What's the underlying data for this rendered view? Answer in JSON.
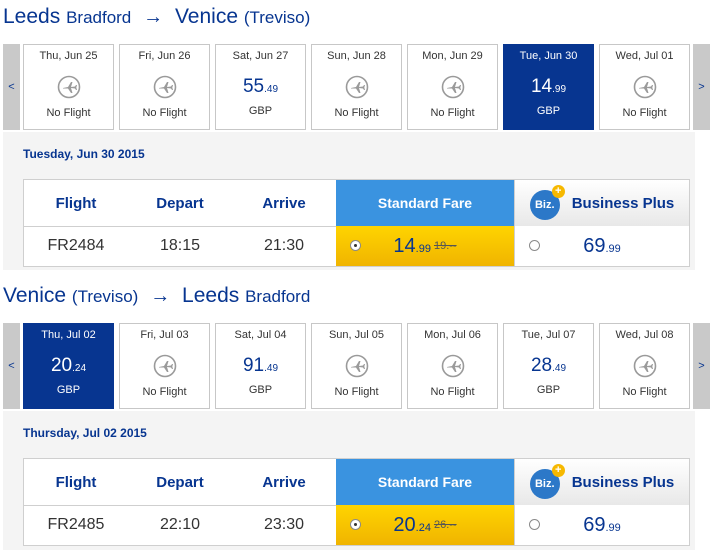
{
  "outbound": {
    "route": {
      "from_city": "Leeds",
      "from_airport": "Bradford",
      "arrow": "→",
      "to_city": "Venice",
      "to_airport": "(Treviso)"
    },
    "nav": {
      "prev": "<",
      "next": ">"
    },
    "days": [
      {
        "label": "Thu, Jun 25",
        "no_flight": "No Flight",
        "icon": "plane-icon"
      },
      {
        "label": "Fri, Jun 26",
        "no_flight": "No Flight",
        "icon": "plane-icon"
      },
      {
        "label": "Sat, Jun 27",
        "price_int": "55",
        "price_dec": ".49",
        "currency": "GBP"
      },
      {
        "label": "Sun, Jun 28",
        "no_flight": "No Flight",
        "icon": "plane-icon"
      },
      {
        "label": "Mon, Jun 29",
        "no_flight": "No Flight",
        "icon": "plane-icon"
      },
      {
        "label": "Tue, Jun 30",
        "price_int": "14",
        "price_dec": ".99",
        "currency": "GBP",
        "selected": true
      },
      {
        "label": "Wed, Jul 01",
        "no_flight": "No Flight",
        "icon": "plane-icon"
      }
    ],
    "selected_date": "Tuesday, Jun 30 2015",
    "headers": {
      "flight": "Flight",
      "depart": "Depart",
      "arrive": "Arrive",
      "standard": "Standard Fare",
      "business": "Business Plus",
      "biz_logo": "Biz.",
      "biz_plus": "+"
    },
    "flight": {
      "number": "FR2484",
      "depart": "18:15",
      "arrive": "21:30",
      "standard_int": "14",
      "standard_dec": ".99",
      "standard_old": "19.--",
      "business_int": "69",
      "business_dec": ".99"
    }
  },
  "inbound": {
    "route": {
      "from_city": "Venice",
      "from_airport": "(Treviso)",
      "arrow": "→",
      "to_city": "Leeds",
      "to_airport": "Bradford"
    },
    "nav": {
      "prev": "<",
      "next": ">"
    },
    "days": [
      {
        "label": "Thu, Jul 02",
        "price_int": "20",
        "price_dec": ".24",
        "currency": "GBP",
        "selected": true
      },
      {
        "label": "Fri, Jul 03",
        "no_flight": "No Flight",
        "icon": "plane-icon"
      },
      {
        "label": "Sat, Jul 04",
        "price_int": "91",
        "price_dec": ".49",
        "currency": "GBP"
      },
      {
        "label": "Sun, Jul 05",
        "no_flight": "No Flight",
        "icon": "plane-icon"
      },
      {
        "label": "Mon, Jul 06",
        "no_flight": "No Flight",
        "icon": "plane-icon"
      },
      {
        "label": "Tue, Jul 07",
        "price_int": "28",
        "price_dec": ".49",
        "currency": "GBP"
      },
      {
        "label": "Wed, Jul 08",
        "no_flight": "No Flight",
        "icon": "plane-icon"
      }
    ],
    "selected_date": "Thursday, Jul 02 2015",
    "headers": {
      "flight": "Flight",
      "depart": "Depart",
      "arrive": "Arrive",
      "standard": "Standard Fare",
      "business": "Business Plus",
      "biz_logo": "Biz.",
      "biz_plus": "+"
    },
    "flight": {
      "number": "FR2485",
      "depart": "22:10",
      "arrive": "23:30",
      "standard_int": "20",
      "standard_dec": ".24",
      "standard_old": "26.--",
      "business_int": "69",
      "business_dec": ".99"
    }
  },
  "colors": {
    "brand": "#073590",
    "standard": "#3a93e0",
    "fare_yellow": "#ffd400",
    "biz_badge": "#2c78c8",
    "plus_badge": "#f6b800"
  }
}
